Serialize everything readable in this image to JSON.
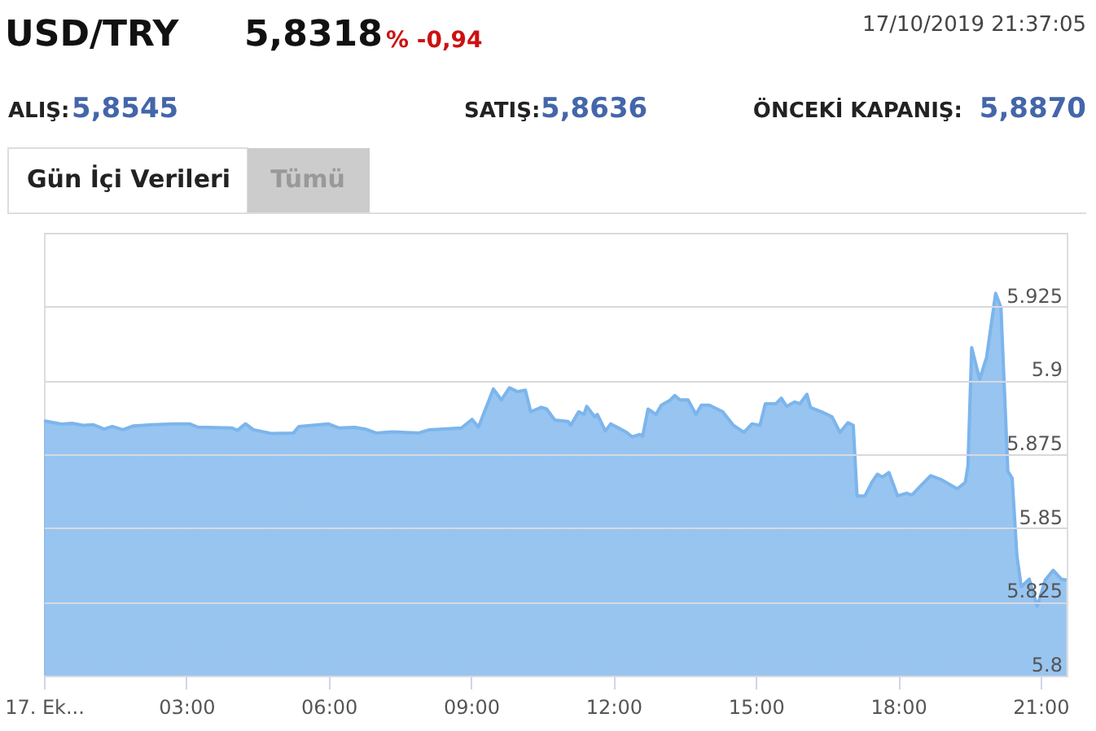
{
  "chart_data": {
    "type": "area",
    "title": "USD/TRY",
    "annotations": [
      "5,8318",
      "% -0,94",
      "17/10/2019 21:37:05",
      "ALIŞ:",
      "5,8545",
      "SATIŞ:",
      "5,8636",
      "ÖNCEKİ KAPANIŞ:",
      "5,8870",
      "Gün İçi Verileri",
      "Tümü"
    ],
    "x": [
      0.0,
      0.37,
      0.594,
      0.819,
      1.044,
      1.268,
      1.437,
      1.662,
      1.886,
      2.28,
      2.729,
      3.066,
      3.235,
      3.965,
      4.077,
      4.246,
      4.414,
      4.807,
      5.257,
      5.369,
      5.987,
      6.212,
      6.549,
      6.774,
      6.999,
      7.335,
      7.897,
      8.122,
      8.796,
      9.02,
      9.155,
      9.47,
      9.638,
      9.807,
      9.975,
      10.144,
      10.256,
      10.481,
      10.593,
      10.762,
      11.043,
      11.099,
      11.267,
      11.379,
      11.436,
      11.605,
      11.661,
      11.83,
      11.942,
      12.279,
      12.391,
      12.559,
      12.615,
      12.728,
      12.896,
      13.008,
      13.177,
      13.29,
      13.402,
      13.571,
      13.739,
      13.851,
      14.02,
      14.301,
      14.526,
      14.75,
      14.919,
      15.087,
      15.2,
      15.424,
      15.537,
      15.649,
      15.818,
      15.93,
      16.076,
      16.154,
      16.435,
      16.604,
      16.772,
      16.941,
      17.053,
      17.132,
      17.3,
      17.446,
      17.559,
      17.671,
      17.806,
      17.986,
      18.177,
      18.289,
      18.457,
      18.682,
      18.907,
      19.244,
      19.413,
      19.469,
      19.548,
      19.716,
      19.862,
      20.053,
      20.165,
      20.311,
      20.401,
      20.502,
      20.592,
      20.761,
      20.929,
      21.098,
      21.266,
      21.435,
      21.547
    ],
    "series": [
      {
        "color": "#7cb5ec",
        "values": [
          5.8863,
          5.8852,
          5.8855,
          5.8848,
          5.885,
          5.8835,
          5.8844,
          5.8833,
          5.8846,
          5.885,
          5.8853,
          5.8853,
          5.8842,
          5.8839,
          5.8831,
          5.8853,
          5.8833,
          5.882,
          5.8822,
          5.8844,
          5.8853,
          5.8839,
          5.8841,
          5.8835,
          5.8822,
          5.8826,
          5.8822,
          5.8833,
          5.8839,
          5.8868,
          5.8842,
          5.8971,
          5.8934,
          5.8975,
          5.8962,
          5.8967,
          5.8894,
          5.8909,
          5.8903,
          5.8866,
          5.8861,
          5.8848,
          5.8894,
          5.8885,
          5.8912,
          5.8877,
          5.8885,
          5.8829,
          5.8853,
          5.8824,
          5.8809,
          5.8817,
          5.8811,
          5.8903,
          5.8885,
          5.8916,
          5.8931,
          5.8949,
          5.8934,
          5.8934,
          5.8885,
          5.8916,
          5.8916,
          5.8894,
          5.8848,
          5.8824,
          5.8853,
          5.8848,
          5.8921,
          5.8921,
          5.894,
          5.8912,
          5.8927,
          5.8921,
          5.8953,
          5.8908,
          5.889,
          5.8877,
          5.8824,
          5.8857,
          5.8848,
          5.8609,
          5.8609,
          5.8655,
          5.8682,
          5.8673,
          5.8688,
          5.8609,
          5.8618,
          5.8612,
          5.864,
          5.8677,
          5.8664,
          5.8633,
          5.8655,
          5.871,
          5.9111,
          5.9004,
          5.9078,
          5.9295,
          5.9247,
          5.8692,
          5.8669,
          5.8406,
          5.8301,
          5.8327,
          5.8235,
          5.8324,
          5.8357,
          5.8327,
          5.8324
        ]
      }
    ],
    "xlim": [
      0,
      21.55
    ],
    "xticks": [
      {
        "value": 0,
        "label": "17. Ek..."
      },
      {
        "value": 3,
        "label": "03:00"
      },
      {
        "value": 6,
        "label": "06:00"
      },
      {
        "value": 9,
        "label": "09:00"
      },
      {
        "value": 12,
        "label": "12:00"
      },
      {
        "value": 15,
        "label": "15:00"
      },
      {
        "value": 18,
        "label": "18:00"
      },
      {
        "value": 21,
        "label": "21:00"
      }
    ],
    "ylim": [
      5.8,
      5.95
    ],
    "yticks": [
      5.8,
      5.825,
      5.85,
      5.875,
      5.9,
      5.925,
      {
        "value": 5.95,
        "label": null
      }
    ],
    "grid": "y",
    "legend": false,
    "marker": "none",
    "line_style": "solid"
  }
}
